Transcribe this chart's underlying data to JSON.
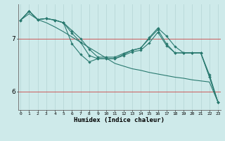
{
  "xlabel": "Humidex (Indice chaleur)",
  "background_color": "#ceeaea",
  "grid_color": "#b8d8d8",
  "red_line_color": "#cc4444",
  "line_color": "#2a7a70",
  "x_ticks": [
    0,
    1,
    2,
    3,
    4,
    5,
    6,
    7,
    8,
    9,
    10,
    11,
    12,
    13,
    14,
    15,
    16,
    17,
    18,
    19,
    20,
    21,
    22,
    23
  ],
  "y_ticks": [
    6,
    7
  ],
  "ylim": [
    5.65,
    7.65
  ],
  "xlim": [
    -0.3,
    23.3
  ],
  "series1": [
    7.35,
    7.52,
    7.36,
    7.38,
    7.35,
    7.3,
    7.15,
    7.0,
    6.8,
    6.65,
    6.65,
    6.65,
    6.72,
    6.78,
    6.82,
    7.02,
    7.2,
    7.05,
    6.85,
    6.73,
    6.73,
    6.73,
    6.28,
    5.8
  ],
  "series2": [
    7.35,
    7.52,
    7.36,
    7.38,
    7.35,
    7.3,
    6.9,
    6.7,
    6.56,
    6.62,
    6.62,
    6.62,
    6.68,
    6.75,
    6.78,
    6.92,
    7.12,
    6.87,
    6.73,
    6.73,
    6.73,
    6.73,
    6.32,
    5.8
  ],
  "series3": [
    7.35,
    7.52,
    7.36,
    7.38,
    7.35,
    7.3,
    7.1,
    6.93,
    6.68,
    6.62,
    6.62,
    6.62,
    6.7,
    6.78,
    6.82,
    7.0,
    7.17,
    6.9,
    6.73,
    6.73,
    6.73,
    6.73,
    6.28,
    5.8
  ],
  "series_straight": [
    7.35,
    7.47,
    7.36,
    7.3,
    7.22,
    7.13,
    7.03,
    6.93,
    6.83,
    6.73,
    6.63,
    6.53,
    6.48,
    6.43,
    6.4,
    6.36,
    6.33,
    6.3,
    6.27,
    6.25,
    6.22,
    6.2,
    6.18,
    5.8
  ]
}
